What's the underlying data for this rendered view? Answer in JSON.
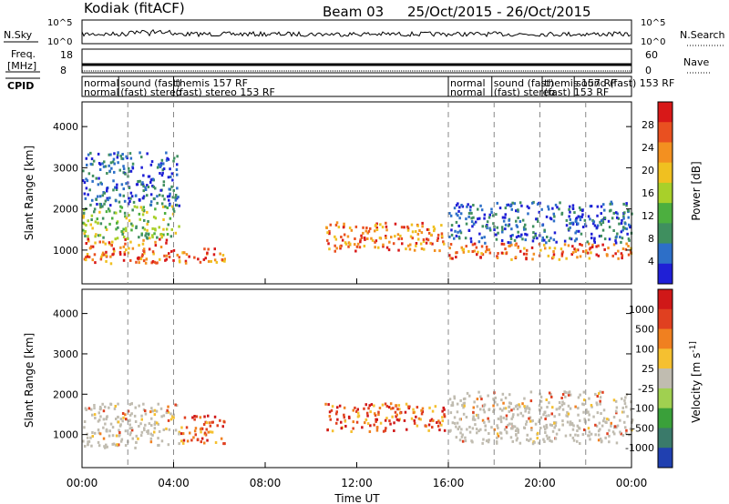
{
  "header": {
    "station": "Kodiak (fitACF)",
    "beam": "Beam 03",
    "date_range": "25/Oct/2015 - 26/Oct/2015"
  },
  "top_panels": {
    "nsky_label": "N.Sky",
    "nsky_ticks": [
      "10^5",
      "10^0"
    ],
    "nsearch_label": "N.Search",
    "nsearch_ticks": [
      "10^5",
      "10^0"
    ],
    "freq_label_1": "Freq.",
    "freq_label_2": "[MHz]",
    "freq_ticks": [
      "18",
      "8"
    ],
    "nave_label": "Nave",
    "nave_ticks": [
      "60",
      "0"
    ],
    "cpid_label": "CPID",
    "cpid_segments_row1": [
      {
        "t": 0.0,
        "text": "normal"
      },
      {
        "t": 1.6,
        "text": "sound (fast)"
      },
      {
        "t": 4.0,
        "text": "themis 157 RF"
      },
      {
        "t": 16.0,
        "text": "normal"
      },
      {
        "t": 17.9,
        "text": "sound (fast)"
      },
      {
        "t": 20.1,
        "text": "themis 157 RF"
      },
      {
        "t": 21.5,
        "text": "sound (fast) 153 RF"
      }
    ],
    "cpid_segments_row2": [
      {
        "t": 0.0,
        "text": "normal"
      },
      {
        "t": 1.6,
        "text": "(fast) stereo"
      },
      {
        "t": 4.0,
        "text": "(fast) stereo 153 RF"
      },
      {
        "t": 16.0,
        "text": "normal"
      },
      {
        "t": 17.9,
        "text": "(fast) stereo"
      },
      {
        "t": 20.1,
        "text": "(fast) 153 RF"
      }
    ]
  },
  "chart_data": [
    {
      "type": "heatmap",
      "title": "",
      "xlabel": "",
      "ylabel": "Slant Range [km]",
      "xlim": [
        0,
        24
      ],
      "ylim": [
        180,
        4600
      ],
      "yticks": [
        1000,
        2000,
        3000,
        4000
      ],
      "colorbar": {
        "label": "Power [dB]",
        "ticks": [
          "28",
          "24",
          "20",
          "16",
          "12",
          "8",
          "4"
        ],
        "colors": [
          "#1f1fd6",
          "#2d6fc8",
          "#3f8f5f",
          "#4caf3f",
          "#a8d02a",
          "#f0c020",
          "#f39020",
          "#e95020",
          "#d81818"
        ]
      },
      "regions": [
        {
          "t0": 0.0,
          "t1": 4.2,
          "r0": 700,
          "r1": 1300,
          "level": "high"
        },
        {
          "t0": 0.0,
          "t1": 4.2,
          "r0": 1300,
          "r1": 2100,
          "level": "mid"
        },
        {
          "t0": 0.0,
          "t1": 4.2,
          "r0": 2100,
          "r1": 3400,
          "level": "low"
        },
        {
          "t0": 4.2,
          "t1": 6.2,
          "r0": 700,
          "r1": 1100,
          "level": "high"
        },
        {
          "t0": 10.6,
          "t1": 15.8,
          "r0": 1000,
          "r1": 1700,
          "level": "high"
        },
        {
          "t0": 16.0,
          "t1": 24.0,
          "r0": 800,
          "r1": 1200,
          "level": "high"
        },
        {
          "t0": 16.0,
          "t1": 24.0,
          "r0": 1200,
          "r1": 2200,
          "level": "low"
        }
      ]
    },
    {
      "type": "heatmap",
      "title": "",
      "xlabel": "Time UT",
      "ylabel": "Slant Range [km]",
      "xlim": [
        0,
        24
      ],
      "ylim": [
        180,
        4600
      ],
      "xticks": [
        "00:00",
        "04:00",
        "08:00",
        "12:00",
        "16:00",
        "20:00",
        "00:00"
      ],
      "yticks": [
        1000,
        2000,
        3000,
        4000
      ],
      "colorbar": {
        "label": "Velocity [m s^-1]",
        "ticks": [
          "1000",
          "500",
          "100",
          "25",
          "-25",
          "-100",
          "-500",
          "-1000"
        ],
        "colors": [
          "#2040b0",
          "#3a7a6a",
          "#3aa03a",
          "#a0d050",
          "#c0bcb0",
          "#f5c030",
          "#f08020",
          "#e04020",
          "#d01818"
        ]
      },
      "regions": [
        {
          "t0": 0.0,
          "t1": 4.2,
          "r0": 700,
          "r1": 1800,
          "level": "ground"
        },
        {
          "t0": 4.2,
          "t1": 6.2,
          "r0": 800,
          "r1": 1500,
          "level": "negative"
        },
        {
          "t0": 10.6,
          "t1": 15.8,
          "r0": 1100,
          "r1": 1800,
          "level": "negative"
        },
        {
          "t0": 16.0,
          "t1": 24.0,
          "r0": 800,
          "r1": 2100,
          "level": "ground"
        }
      ]
    }
  ]
}
